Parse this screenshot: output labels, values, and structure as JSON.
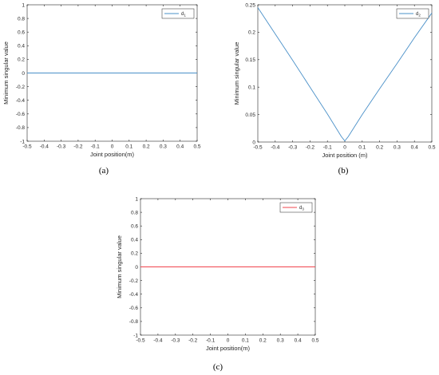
{
  "chart_data": [
    {
      "type": "line",
      "panel": "(a)",
      "xlabel": "Joint position(m)",
      "ylabel": "Minimum singular value",
      "xlim": [
        -0.5,
        0.5
      ],
      "ylim": [
        -1,
        1
      ],
      "xticks": [
        "-0.5",
        "-0.4",
        "-0.3",
        "-0.2",
        "-0.1",
        "0",
        "0.1",
        "0.2",
        "0.3",
        "0.4",
        "0.5"
      ],
      "yticks": [
        "-1",
        "-0.8",
        "-0.6",
        "-0.4",
        "-0.2",
        "0",
        "0.2",
        "0.4",
        "0.6",
        "0.8",
        "1"
      ],
      "grid": false,
      "legend": "top-right",
      "series": [
        {
          "name": "d",
          "subscript": "1",
          "color": "#4a90c8",
          "x": [
            -0.5,
            0.5
          ],
          "y": [
            0,
            0
          ]
        }
      ]
    },
    {
      "type": "line",
      "panel": "(b)",
      "xlabel": "Joint position (m)",
      "ylabel": "Minimum singular value",
      "xlim": [
        -0.5,
        0.5
      ],
      "ylim": [
        0,
        0.25
      ],
      "xticks": [
        "-0.5",
        "-0.4",
        "-0.3",
        "-0.2",
        "-0.1",
        "0",
        "0.1",
        "0.2",
        "0.3",
        "0.4",
        "0.5"
      ],
      "yticks": [
        "0",
        "0.05",
        "0.1",
        "0.15",
        "0.2",
        "0.25"
      ],
      "grid": false,
      "legend": "top-right",
      "series": [
        {
          "name": "d",
          "subscript": "2",
          "color": "#4a90c8",
          "x": [
            -0.5,
            -0.4,
            -0.3,
            -0.2,
            -0.1,
            -0.02,
            0,
            0.02,
            0.1,
            0.2,
            0.3,
            0.4,
            0.5
          ],
          "y": [
            0.245,
            0.197,
            0.149,
            0.1,
            0.051,
            0.01,
            0.002,
            0.01,
            0.05,
            0.097,
            0.143,
            0.19,
            0.235
          ]
        }
      ]
    },
    {
      "type": "line",
      "panel": "(c)",
      "xlabel": "Joint position(m)",
      "ylabel": "Minimum singular value",
      "xlim": [
        -0.5,
        0.5
      ],
      "ylim": [
        -1,
        1
      ],
      "xticks": [
        "-0.5",
        "-0.4",
        "-0.3",
        "-0.2",
        "-0.1",
        "0",
        "0.1",
        "0.2",
        "0.3",
        "0.4",
        "0.5"
      ],
      "yticks": [
        "-1",
        "-0.8",
        "-0.6",
        "-0.4",
        "-0.2",
        "0",
        "0.2",
        "0.4",
        "0.6",
        "0.8",
        "1"
      ],
      "grid": false,
      "legend": "top-right",
      "series": [
        {
          "name": "d",
          "subscript": "3",
          "color": "#f0444c",
          "x": [
            -0.5,
            0.5
          ],
          "y": [
            0,
            0
          ]
        }
      ]
    }
  ]
}
